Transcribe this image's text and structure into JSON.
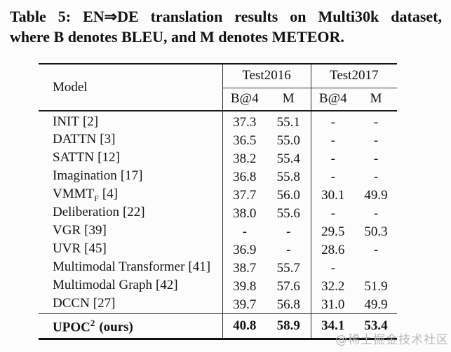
{
  "caption": {
    "line1": "Table 5: EN⇒DE translation results on Multi30k dataset,",
    "line2": "where B denotes BLEU, and M denotes METEOR."
  },
  "table": {
    "model_header": "Model",
    "groups": [
      {
        "label": "Test2016"
      },
      {
        "label": "Test2017"
      }
    ],
    "subheaders": [
      "B@4",
      "M",
      "B@4",
      "M"
    ],
    "rows": [
      {
        "name": "INIT",
        "sub": "",
        "ref": "[2]",
        "values": [
          "37.3",
          "55.1",
          "-",
          "-"
        ]
      },
      {
        "name": "DATTN",
        "sub": "",
        "ref": "[3]",
        "values": [
          "36.5",
          "55.0",
          "-",
          "-"
        ]
      },
      {
        "name": "SATTN",
        "sub": "",
        "ref": "[12]",
        "values": [
          "38.2",
          "55.4",
          "-",
          "-"
        ]
      },
      {
        "name": "Imagination",
        "sub": "",
        "ref": "[17]",
        "values": [
          "36.8",
          "55.8",
          "-",
          "-"
        ]
      },
      {
        "name": "VMMT",
        "sub": "F",
        "ref": "[4]",
        "values": [
          "37.7",
          "56.0",
          "30.1",
          "49.9"
        ]
      },
      {
        "name": "Deliberation",
        "sub": "",
        "ref": "[22]",
        "values": [
          "38.0",
          "55.6",
          "-",
          "-"
        ]
      },
      {
        "name": "VGR",
        "sub": "",
        "ref": "[39]",
        "values": [
          "-",
          "-",
          "29.5",
          "50.3"
        ]
      },
      {
        "name": "UVR",
        "sub": "",
        "ref": "[45]",
        "values": [
          "36.9",
          "-",
          "28.6",
          "-"
        ]
      },
      {
        "name": "Multimodal Transformer",
        "sub": "",
        "ref": "[41]",
        "values": [
          "38.7",
          "55.7",
          "-",
          ""
        ]
      },
      {
        "name": "Multimodal Graph",
        "sub": "",
        "ref": "[42]",
        "values": [
          "39.8",
          "57.6",
          "32.2",
          "51.9"
        ]
      },
      {
        "name": "DCCN",
        "sub": "",
        "ref": "[27]",
        "values": [
          "39.7",
          "56.8",
          "31.0",
          "49.9"
        ]
      }
    ],
    "final_row": {
      "name": "UPOC",
      "sup": "2",
      "suffix": "(ours)",
      "values": [
        "40.8",
        "58.9",
        "34.1",
        "53.4"
      ]
    }
  },
  "watermark": "@稀土掘金技术社区"
}
